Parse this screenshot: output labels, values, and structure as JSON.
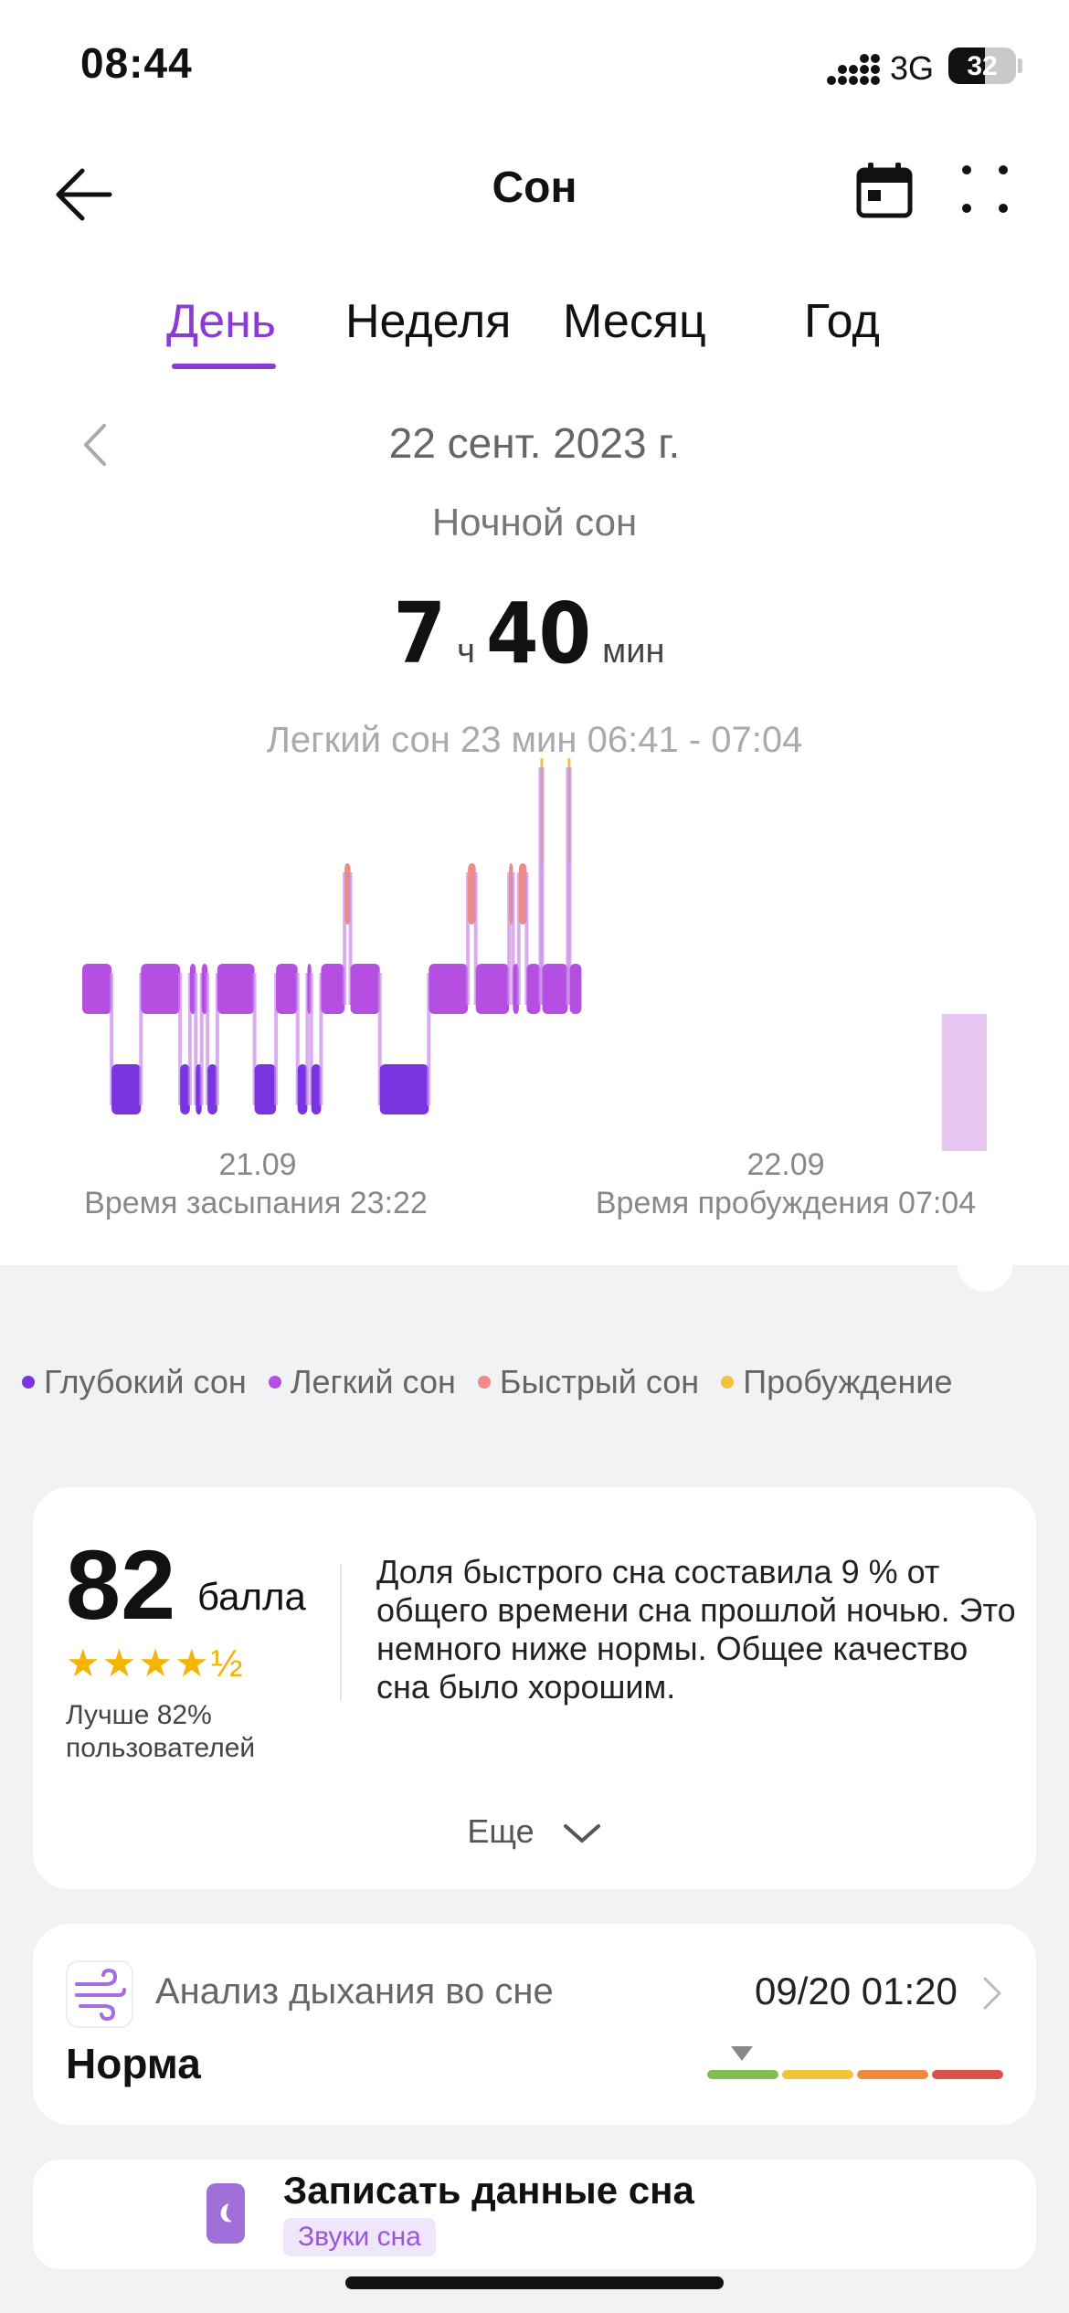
{
  "status_bar": {
    "time": "08:44",
    "network": "3G",
    "battery": "32"
  },
  "header": {
    "title": "Сон"
  },
  "tabs": [
    {
      "label": "День",
      "active": true
    },
    {
      "label": "Неделя",
      "active": false
    },
    {
      "label": "Месяц",
      "active": false
    },
    {
      "label": "Год",
      "active": false
    }
  ],
  "date": "22 сент. 2023 г.",
  "subtitle": "Ночной сон",
  "duration": {
    "hours": "7",
    "hours_unit": "ч",
    "minutes": "40",
    "minutes_unit": "мин"
  },
  "tooltip": "Легкий сон 23 мин 06:41 - 07:04",
  "chart_axis": {
    "start_date": "21.09",
    "start_label": "Время засыпания 23:22",
    "end_date": "22.09",
    "end_label": "Время пробуждения 07:04"
  },
  "chart_data": {
    "type": "sleep-hypnogram",
    "start": "23:22",
    "end": "07:04",
    "colors": {
      "deep": "#7a35e0",
      "light": "#b44fe2",
      "rem": "#ef8a86",
      "awake": "#f2c23c"
    },
    "segments": [
      {
        "stage": "light",
        "start": "23:22",
        "end": "23:37"
      },
      {
        "stage": "deep",
        "start": "23:37",
        "end": "23:52"
      },
      {
        "stage": "light",
        "start": "23:52",
        "end": "00:12"
      },
      {
        "stage": "deep",
        "start": "00:12",
        "end": "00:17"
      },
      {
        "stage": "light",
        "start": "00:17",
        "end": "00:20"
      },
      {
        "stage": "deep",
        "start": "00:20",
        "end": "00:23"
      },
      {
        "stage": "light",
        "start": "00:23",
        "end": "00:26"
      },
      {
        "stage": "deep",
        "start": "00:26",
        "end": "00:31"
      },
      {
        "stage": "light",
        "start": "00:31",
        "end": "00:50"
      },
      {
        "stage": "deep",
        "start": "00:50",
        "end": "01:01"
      },
      {
        "stage": "light",
        "start": "01:01",
        "end": "01:12"
      },
      {
        "stage": "deep",
        "start": "01:12",
        "end": "01:17"
      },
      {
        "stage": "light",
        "start": "01:17",
        "end": "01:19"
      },
      {
        "stage": "deep",
        "start": "01:19",
        "end": "01:24"
      },
      {
        "stage": "light",
        "start": "01:24",
        "end": "01:36"
      },
      {
        "stage": "rem",
        "start": "01:36",
        "end": "01:39"
      },
      {
        "stage": "light",
        "start": "01:39",
        "end": "01:54"
      },
      {
        "stage": "deep",
        "start": "01:54",
        "end": "02:19"
      },
      {
        "stage": "light",
        "start": "02:19",
        "end": "02:39"
      },
      {
        "stage": "rem",
        "start": "02:39",
        "end": "02:43"
      },
      {
        "stage": "light",
        "start": "02:43",
        "end": "03:00"
      },
      {
        "stage": "rem",
        "start": "03:00",
        "end": "03:02"
      },
      {
        "stage": "light",
        "start": "03:02",
        "end": "03:05"
      },
      {
        "stage": "rem",
        "start": "03:05",
        "end": "03:09"
      },
      {
        "stage": "light",
        "start": "03:09",
        "end": "03:16"
      },
      {
        "stage": "awake",
        "start": "03:16",
        "end": "03:17"
      },
      {
        "stage": "light",
        "start": "03:17",
        "end": "03:30"
      },
      {
        "stage": "awake",
        "start": "03:30",
        "end": "03:31"
      },
      {
        "stage": "light",
        "start": "03:31",
        "end": "03:37"
      }
    ],
    "highlight": {
      "stage": "light",
      "start": "06:41",
      "end": "07:04"
    },
    "legend": [
      {
        "label": "Глубокий сон",
        "stage": "deep"
      },
      {
        "label": "Легкий сон",
        "stage": "light"
      },
      {
        "label": "Быстрый сон",
        "stage": "rem"
      },
      {
        "label": "Пробуждение",
        "stage": "awake"
      }
    ]
  },
  "score_card": {
    "score": "82",
    "score_unit": "балла",
    "stars": "★★★★½",
    "better_line1": "Лучше 82%",
    "better_line2": "пользователей",
    "description": "Доля быстрого сна составила 9 % от общего времени сна прошлой ночью. Это немного ниже нормы. Общее качество сна было хорошим.",
    "more": "Еще"
  },
  "breathing": {
    "label": "Анализ дыхания во сне",
    "datetime": "09/20 01:20",
    "status": "Норма",
    "scale_colors": [
      "#7fbf52",
      "#f0c43b",
      "#ef8a3c",
      "#d9534c"
    ]
  },
  "record": {
    "title": "Записать данные сна",
    "chip": "Звуки сна"
  }
}
